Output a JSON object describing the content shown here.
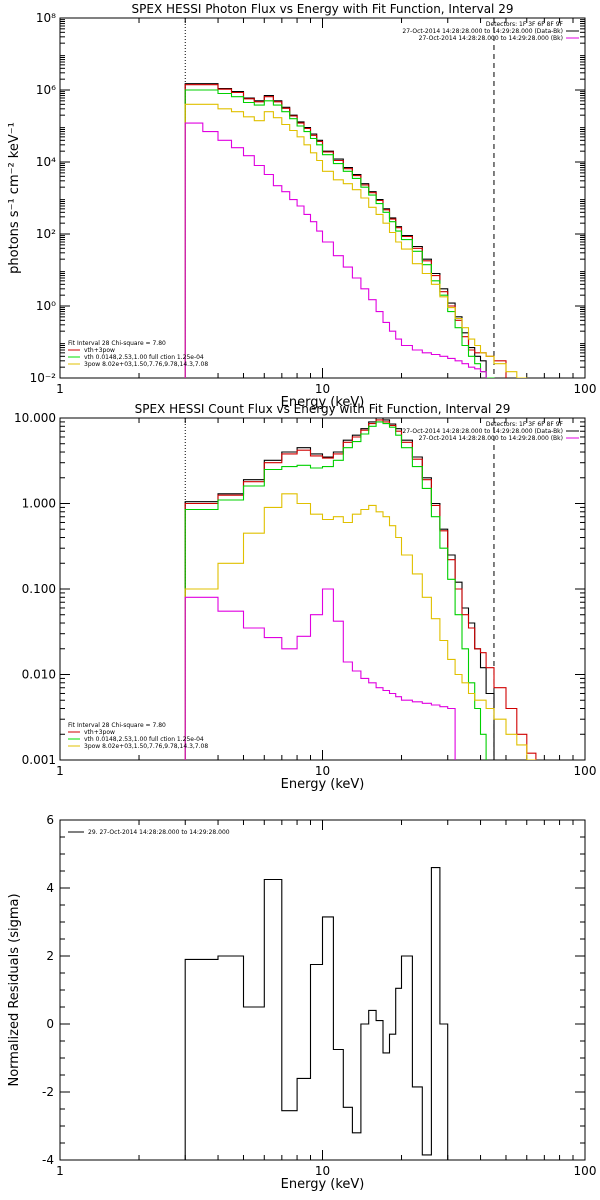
{
  "chart_data": [
    {
      "type": "line",
      "title": "SPEX HESSI Photon Flux vs Energy with Fit Function, Interval 29",
      "xlabel": "Energy (keV)",
      "ylabel": "photons s⁻¹ cm⁻² keV⁻¹",
      "xscale": "log",
      "yscale": "log",
      "xlim": [
        1,
        100
      ],
      "ylim": [
        0.01,
        100000000
      ],
      "xticklabels": [
        "1",
        "10",
        "100"
      ],
      "yticklabels": [
        "10⁻²",
        "10⁰",
        "10²",
        "10⁴",
        "10⁶",
        "10⁸"
      ],
      "vlines": [
        {
          "x": 3,
          "style": "dotted"
        },
        {
          "x": 45,
          "style": "dashed"
        }
      ],
      "legend_topright": [
        {
          "text": "Detectors: 1F 3F 6F 8F 9F",
          "color": ""
        },
        {
          "text": "27-Oct-2014 14:28:28.000 to 14:29:28.000 (Data-Bk)",
          "color": "#000000"
        },
        {
          "text": "27-Oct-2014 14:28:28.000 to 14:29:28.000 (Bk)",
          "color": "#e000e0"
        }
      ],
      "legend_bottomleft": [
        {
          "text": "Fit Interval 28   Chi-square = 7.80",
          "color": ""
        },
        {
          "text": "vth+3pow",
          "color": "#d00000"
        },
        {
          "text": "vth 0.0148,2.53,1.00  full ction 1.25e-04",
          "color": "#00e000"
        },
        {
          "text": "3pow  8.02e+03,1.50,7.76,9.78,14.3,7.08",
          "color": "#e0c000"
        }
      ],
      "edges": [
        3,
        3.5,
        4,
        4.5,
        5,
        5.5,
        6,
        6.5,
        7,
        7.5,
        8,
        8.5,
        9,
        9.5,
        10,
        11,
        12,
        13,
        14,
        15,
        16,
        17,
        18,
        19,
        20,
        22,
        24,
        26,
        28,
        30,
        32,
        34,
        36,
        38,
        40,
        42,
        45,
        50,
        55,
        60
      ],
      "series": [
        {
          "name": "",
          "color": "#000000",
          "values": [
            1500000,
            1500000,
            1100000,
            900000,
            600000,
            500000,
            700000,
            500000,
            330000,
            200000,
            130000,
            90000,
            60000,
            40000,
            20000,
            12000,
            7000,
            4500,
            2500,
            1500,
            900,
            500,
            280,
            160,
            90,
            45,
            20,
            8,
            3,
            1.2,
            0.5,
            0.18,
            0.07,
            0.04,
            0.03,
            null,
            null,
            null,
            null
          ]
        },
        {
          "name": "",
          "color": "#d00000",
          "values": [
            1400000,
            1400000,
            1050000,
            850000,
            570000,
            470000,
            650000,
            470000,
            310000,
            190000,
            120000,
            85000,
            55000,
            37000,
            19000,
            11000,
            6500,
            4200,
            2300,
            1400,
            850,
            470,
            260,
            150,
            85,
            40,
            18,
            7,
            2.5,
            1.0,
            0.4,
            0.14,
            0.06,
            0.05,
            0.05,
            0.04,
            0.03,
            null,
            null
          ]
        },
        {
          "name": "",
          "color": "#00d000",
          "values": [
            1000000,
            1000000,
            800000,
            650000,
            450000,
            380000,
            500000,
            380000,
            250000,
            160000,
            100000,
            70000,
            45000,
            30000,
            16000,
            9000,
            5500,
            3500,
            2000,
            1200,
            700,
            400,
            220,
            120,
            70,
            33,
            14,
            5,
            2,
            0.7,
            0.25,
            0.08,
            0.04,
            0.025,
            0.015,
            0.01,
            null,
            null,
            null
          ]
        },
        {
          "name": "",
          "color": "#e0c000",
          "values": [
            400000,
            400000,
            300000,
            250000,
            180000,
            140000,
            250000,
            170000,
            110000,
            75000,
            50000,
            30000,
            18000,
            11000,
            5500,
            3200,
            2500,
            1700,
            1000,
            550,
            350,
            200,
            110,
            60,
            38,
            15,
            8,
            4,
            1.8,
            0.9,
            0.45,
            0.25,
            0.12,
            0.08,
            0.05,
            0.04,
            0.025,
            0.015,
            0.01
          ]
        },
        {
          "name": "",
          "color": "#e000e0",
          "values": [
            120000,
            70000,
            40000,
            25000,
            15000,
            8000,
            4500,
            2200,
            1500,
            900,
            600,
            350,
            220,
            120,
            60,
            25,
            12,
            6,
            3,
            1.5,
            0.7,
            0.35,
            0.2,
            0.12,
            0.08,
            0.06,
            0.05,
            0.045,
            0.04,
            0.035,
            0.03,
            0.025,
            0.02,
            0.018,
            0.015,
            null,
            null,
            null,
            null
          ]
        }
      ]
    },
    {
      "type": "line",
      "title": "SPEX HESSI Count Flux vs Energy with Fit Function, Interval 29",
      "xlabel": "Energy (keV)",
      "ylabel": "",
      "xscale": "log",
      "yscale": "log",
      "xlim": [
        1,
        100
      ],
      "ylim": [
        0.001,
        10
      ],
      "xticklabels": [
        "1",
        "10",
        "100"
      ],
      "yticklabels": [
        "0.001",
        "0.010",
        "0.100",
        "1.000",
        "10.000"
      ],
      "vlines": [
        {
          "x": 3,
          "style": "dotted"
        },
        {
          "x": 45,
          "style": "dashed"
        }
      ],
      "legend_topright": [
        {
          "text": "Detectors: 1F 3F 6F 8F 9F",
          "color": ""
        },
        {
          "text": "27-Oct-2014 14:28:28.000 to 14:29:28.000 (Data-Bk)",
          "color": "#000000"
        },
        {
          "text": "27-Oct-2014 14:28:28.000 to 14:29:28.000 (Bk)",
          "color": "#e000e0"
        }
      ],
      "legend_bottomleft": [
        {
          "text": "Fit Interval 28   Chi-square = 7.80",
          "color": ""
        },
        {
          "text": "vth+3pow",
          "color": "#d00000"
        },
        {
          "text": "vth 0.0148,2.53,1.00  full ction 1.25e-04",
          "color": "#00e000"
        },
        {
          "text": "3pow  8.02e+03,1.50,7.76,9.78,14.3,7.08",
          "color": "#e0c000"
        }
      ],
      "edges": [
        3,
        4,
        5,
        6,
        7,
        8,
        9,
        10,
        11,
        12,
        13,
        14,
        15,
        16,
        17,
        18,
        19,
        20,
        22,
        24,
        26,
        28,
        30,
        32,
        34,
        36,
        38,
        40,
        42,
        45,
        50,
        55,
        60,
        65,
        70
      ],
      "series": [
        {
          "name": "",
          "color": "#000000",
          "values": [
            1.05,
            1.3,
            1.9,
            3.2,
            4.0,
            4.5,
            3.8,
            3.5,
            4.0,
            5.5,
            6.3,
            7.5,
            9.0,
            10.0,
            9.5,
            8.5,
            7.5,
            5.5,
            3.5,
            2.0,
            1.0,
            0.5,
            0.25,
            0.12,
            0.06,
            0.04,
            0.02,
            0.012,
            0.006,
            null,
            null,
            null,
            null,
            null
          ]
        },
        {
          "name": "",
          "color": "#d00000",
          "values": [
            1.0,
            1.25,
            1.8,
            3.0,
            3.8,
            4.2,
            3.6,
            3.4,
            3.8,
            5.2,
            6.0,
            7.2,
            8.6,
            9.5,
            9.0,
            8.2,
            7.0,
            5.2,
            3.3,
            1.9,
            0.95,
            0.48,
            0.22,
            0.1,
            0.05,
            0.035,
            0.02,
            0.018,
            0.012,
            0.007,
            0.004,
            0.002,
            0.0012,
            null
          ]
        },
        {
          "name": "",
          "color": "#00d000",
          "values": [
            0.85,
            1.1,
            1.6,
            2.5,
            2.7,
            2.8,
            2.6,
            2.7,
            3.2,
            4.5,
            5.3,
            6.5,
            8.0,
            9.0,
            8.6,
            7.8,
            6.3,
            4.5,
            2.7,
            1.5,
            0.7,
            0.3,
            0.13,
            0.05,
            0.02,
            0.008,
            0.004,
            0.002,
            null,
            null,
            null,
            null,
            null,
            null
          ]
        },
        {
          "name": "",
          "color": "#e0c000",
          "values": [
            0.1,
            0.2,
            0.45,
            0.9,
            1.3,
            1.0,
            0.75,
            0.65,
            0.7,
            0.6,
            0.75,
            0.85,
            0.95,
            0.8,
            0.7,
            0.55,
            0.4,
            0.25,
            0.15,
            0.08,
            0.045,
            0.025,
            0.015,
            0.01,
            0.008,
            0.006,
            0.005,
            0.005,
            0.004,
            0.003,
            0.002,
            0.0015,
            0.001,
            null
          ]
        },
        {
          "name": "",
          "color": "#e000e0",
          "values": [
            0.08,
            0.055,
            0.035,
            0.027,
            0.02,
            0.028,
            0.05,
            0.1,
            0.042,
            0.014,
            0.011,
            0.009,
            0.008,
            0.007,
            0.0065,
            0.006,
            0.0055,
            0.005,
            0.0048,
            0.0046,
            0.0044,
            0.0042,
            0.004,
            null,
            null,
            null,
            null,
            null,
            null,
            null,
            null,
            null,
            null,
            null
          ]
        }
      ]
    },
    {
      "type": "line",
      "title": "",
      "xlabel": "Energy (keV)",
      "ylabel": "Normalized Residuals (sigma)",
      "xscale": "log",
      "yscale": "linear",
      "xlim": [
        1,
        100
      ],
      "ylim": [
        -4,
        6
      ],
      "xticklabels": [
        "1",
        "10",
        "100"
      ],
      "yticks": [
        -4,
        -2,
        0,
        2,
        4,
        6
      ],
      "yticklabels": [
        "-4",
        "-2",
        "0",
        "2",
        "4",
        "6"
      ],
      "legend_topright": [],
      "legend_bottomleft": [],
      "legend_topleft": [
        {
          "text": "29. 27-Oct-2014 14:28:28.000 to 14:29:28.000",
          "color": "#000000"
        }
      ],
      "vlines": [],
      "edges": [
        3,
        4,
        5,
        6,
        7,
        8,
        9,
        10,
        11,
        12,
        13,
        14,
        15,
        16,
        17,
        18,
        19,
        20,
        22,
        24,
        26,
        28,
        30,
        32,
        34,
        36,
        38,
        40,
        42,
        45
      ],
      "series": [
        {
          "name": "",
          "color": "#000000",
          "values": [
            1.9,
            2.0,
            0.5,
            4.25,
            -2.55,
            -1.6,
            1.75,
            3.15,
            -0.75,
            -2.45,
            -3.2,
            0.0,
            0.4,
            0.1,
            -0.85,
            -0.3,
            1.05,
            2.0,
            -1.85,
            -3.85,
            4.6,
            0.0,
            null,
            null,
            null,
            null,
            null,
            null,
            null
          ]
        }
      ]
    }
  ]
}
